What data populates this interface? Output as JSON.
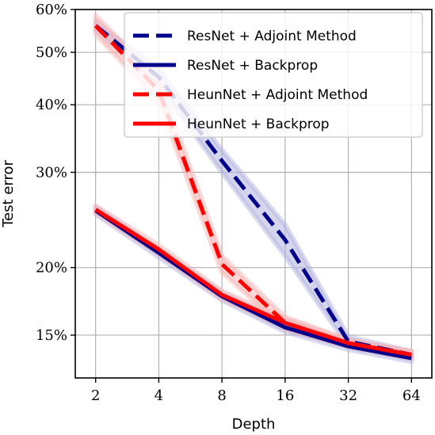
{
  "chart_data": {
    "type": "line",
    "xlabel": "Depth",
    "ylabel": "Test error",
    "x_scale": "log2",
    "y_scale": "log",
    "x": [
      2,
      4,
      8,
      16,
      32,
      64
    ],
    "x_tick_labels": [
      "2",
      "4",
      "8",
      "16",
      "32",
      "64"
    ],
    "y_ticks": [
      15,
      20,
      30,
      40,
      50,
      60
    ],
    "y_tick_labels": [
      "15%",
      "20%",
      "30%",
      "40%",
      "50%",
      "60%"
    ],
    "ylim": [
      12.5,
      60
    ],
    "grid": true,
    "legend_position": "top-right",
    "series": [
      {
        "name": "ResNet + Adjoint Method",
        "style": "dashed",
        "color": "#00008b",
        "band_color": "#b3b3e0",
        "values": [
          56.0,
          45.0,
          31.5,
          22.5,
          14.6,
          13.8
        ],
        "upper": [
          57.0,
          46.5,
          33.0,
          24.0,
          14.9,
          14.0
        ],
        "lower": [
          55.0,
          43.5,
          30.0,
          21.0,
          14.3,
          13.6
        ]
      },
      {
        "name": "ResNet + Backprop",
        "style": "solid",
        "color": "#00008b",
        "band_color": "#b3b3e0",
        "values": [
          25.5,
          21.3,
          17.7,
          15.5,
          14.3,
          13.6
        ],
        "upper": [
          25.9,
          21.7,
          18.0,
          15.8,
          14.5,
          13.8
        ],
        "lower": [
          25.1,
          20.9,
          17.4,
          15.2,
          14.1,
          13.4
        ]
      },
      {
        "name": "HeunNet + Adjoint Method",
        "style": "dashed",
        "color": "#ff0000",
        "band_color": "#f7b6b6",
        "values": [
          56.0,
          42.5,
          20.3,
          15.8,
          14.5,
          13.8
        ],
        "upper": [
          58.5,
          44.5,
          21.0,
          16.2,
          14.7,
          14.0
        ],
        "lower": [
          54.0,
          40.5,
          19.6,
          15.4,
          14.3,
          13.6
        ]
      },
      {
        "name": "HeunNet + Backprop",
        "style": "solid",
        "color": "#ff0000",
        "band_color": "#f7b6b6",
        "values": [
          25.6,
          21.6,
          17.8,
          15.8,
          14.5,
          13.8
        ],
        "upper": [
          26.0,
          22.0,
          18.1,
          16.1,
          14.7,
          14.0
        ],
        "lower": [
          25.2,
          21.2,
          17.5,
          15.5,
          14.3,
          13.6
        ]
      }
    ]
  }
}
